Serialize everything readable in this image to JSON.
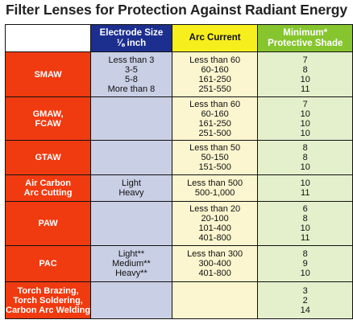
{
  "title": "Filter Lenses for Protection Against Radiant Energy",
  "headers": {
    "electrode_line1": "Electrode Size",
    "electrode_line2": "⅛ inch",
    "arc_current": "Arc Current",
    "shade_line1": "Minimum*",
    "shade_line2": "Protective Shade"
  },
  "rows": [
    {
      "process": [
        "SMAW"
      ],
      "electrode": [
        "Less than 3",
        "3-5",
        "5-8",
        "More than 8"
      ],
      "arc": [
        "Less than 60",
        "60-160",
        "161-250",
        "251-550"
      ],
      "shade": [
        "7",
        "8",
        "10",
        "11"
      ]
    },
    {
      "process": [
        "GMAW,",
        "FCAW"
      ],
      "electrode": [],
      "arc": [
        "Less than 60",
        "60-160",
        "161-250",
        "251-500"
      ],
      "shade": [
        "7",
        "10",
        "10",
        "10"
      ]
    },
    {
      "process": [
        "GTAW"
      ],
      "electrode": [],
      "arc": [
        "Less than 50",
        "50-150",
        "151-500"
      ],
      "shade": [
        "8",
        "8",
        "10"
      ]
    },
    {
      "process": [
        "Air Carbon",
        "Arc Cutting"
      ],
      "electrode": [
        "Light",
        "Heavy"
      ],
      "arc": [
        "Less than 500",
        "500-1,000"
      ],
      "shade": [
        "10",
        "11"
      ]
    },
    {
      "process": [
        "PAW"
      ],
      "electrode": [],
      "arc": [
        "Less than 20",
        "20-100",
        "101-400",
        "401-800"
      ],
      "shade": [
        "6",
        "8",
        "10",
        "11"
      ]
    },
    {
      "process": [
        "PAC"
      ],
      "electrode": [
        "Light**",
        "Medium**",
        "Heavy**"
      ],
      "arc": [
        "Less than 300",
        "300-400",
        "401-800"
      ],
      "shade": [
        "8",
        "9",
        "10"
      ]
    },
    {
      "process": [
        "Torch Brazing,",
        "Torch Soldering,",
        "Carbon Arc Welding"
      ],
      "electrode": [],
      "arc": [],
      "shade": [
        "3",
        "2",
        "14"
      ]
    }
  ],
  "colors": {
    "process": "#f03a10",
    "electrode_header": "#1c2f8f",
    "electrode_cells": "#c9cfe4",
    "arc_header": "#f7ee1d",
    "arc_cells": "#fbf6cf",
    "shade_header": "#86c52e",
    "shade_cells": "#e4f0cc"
  }
}
